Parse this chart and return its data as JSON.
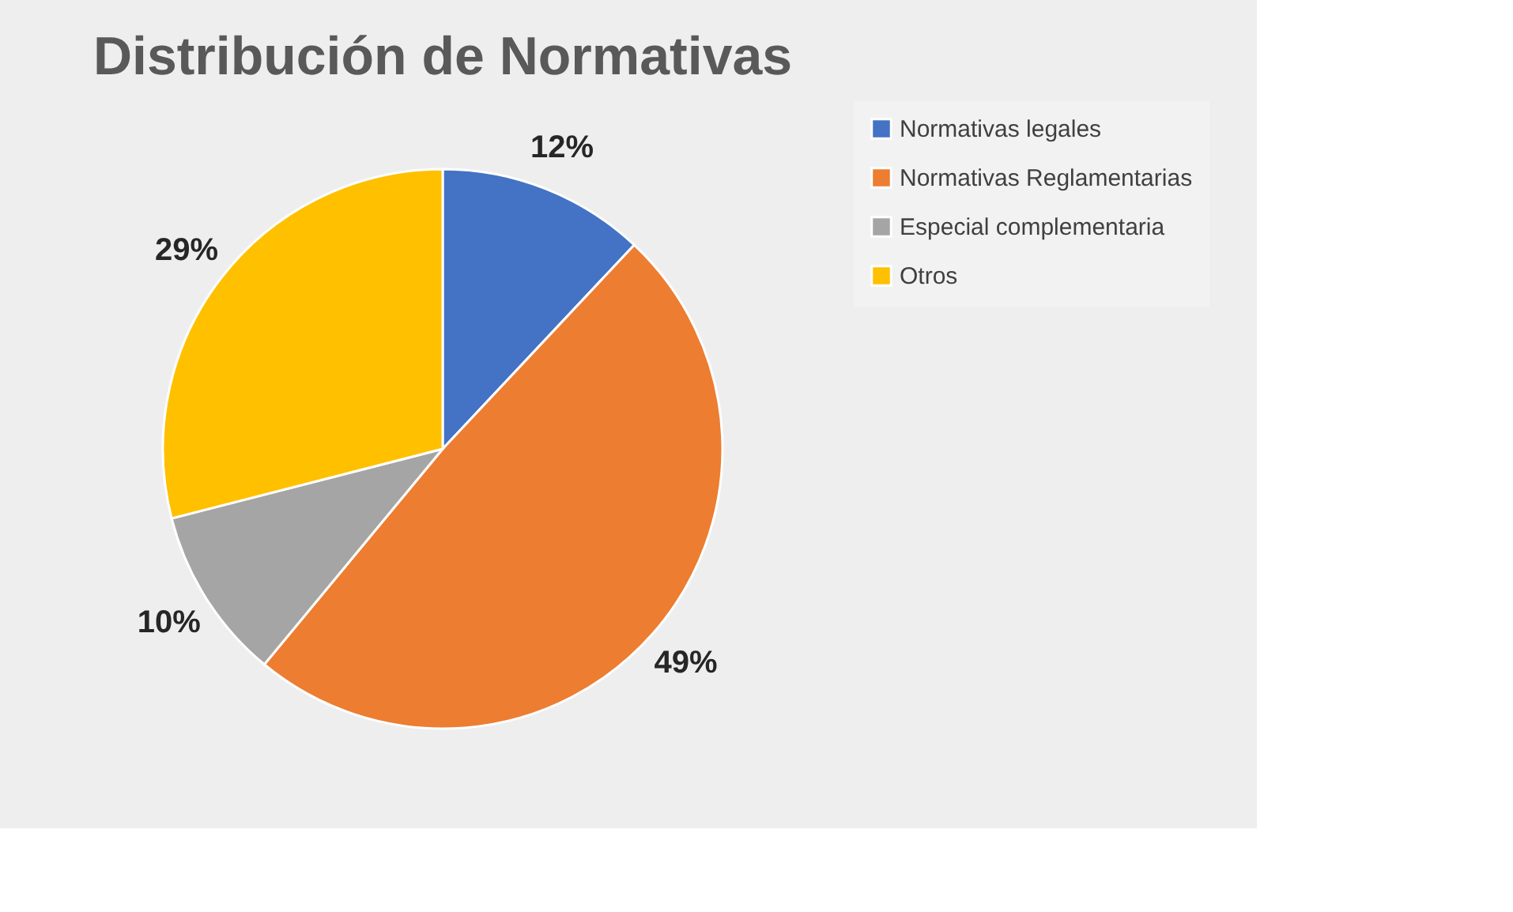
{
  "chart_data": {
    "type": "pie",
    "title": "Distribución de Normativas",
    "categories": [
      "Normativas legales",
      "Normativas Reglamentarias",
      "Especial complementaria",
      "Otros"
    ],
    "values": [
      12,
      49,
      10,
      29
    ],
    "colors": [
      "#4472c4",
      "#ed7d31",
      "#a5a5a5",
      "#ffc000"
    ],
    "value_labels": [
      "12%",
      "49%",
      "10%",
      "29%"
    ],
    "legend": "right"
  }
}
